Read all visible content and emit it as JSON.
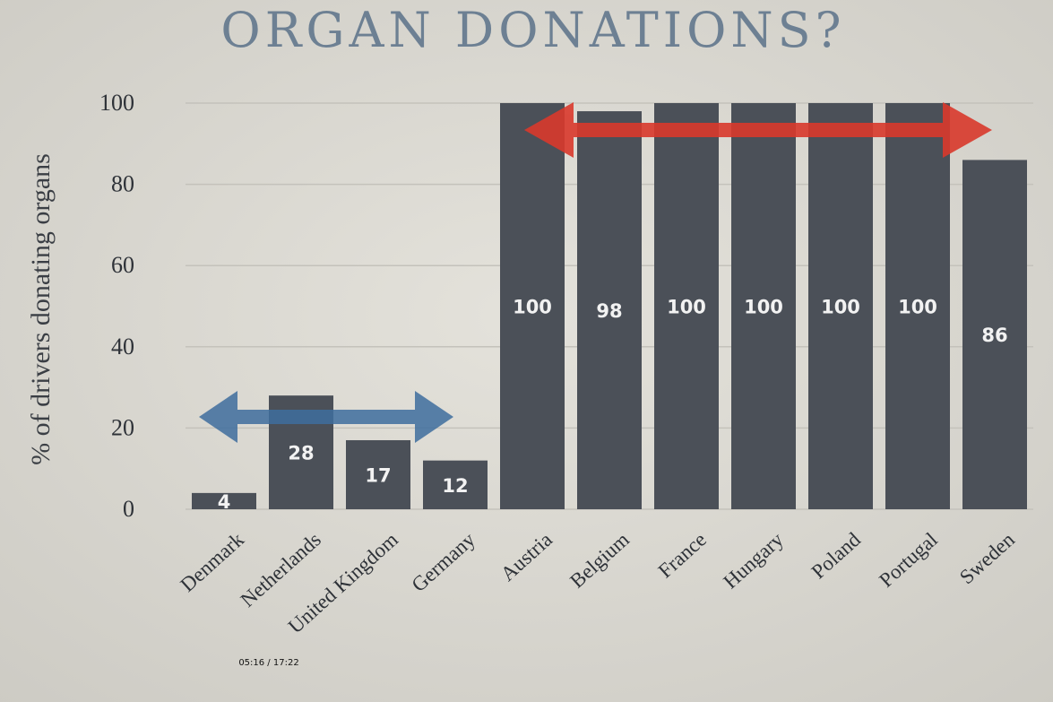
{
  "chart_data": {
    "type": "bar",
    "title": "ORGAN DONATIONS?",
    "y_label": "% of drivers donating organs",
    "categories": [
      "Denmark",
      "Netherlands",
      "United Kingdom",
      "Germany",
      "Austria",
      "Belgium",
      "France",
      "Hungary",
      "Poland",
      "Portugal",
      "Sweden"
    ],
    "values": [
      4,
      28,
      17,
      12,
      100,
      98,
      100,
      100,
      100,
      100,
      86
    ],
    "color": "#4b5058",
    "ylim": [
      0,
      100
    ],
    "yticks": [
      0,
      20,
      40,
      60,
      80,
      100
    ],
    "grid": true
  },
  "overlay": {
    "timestamp": "05:16 / 17:22"
  }
}
